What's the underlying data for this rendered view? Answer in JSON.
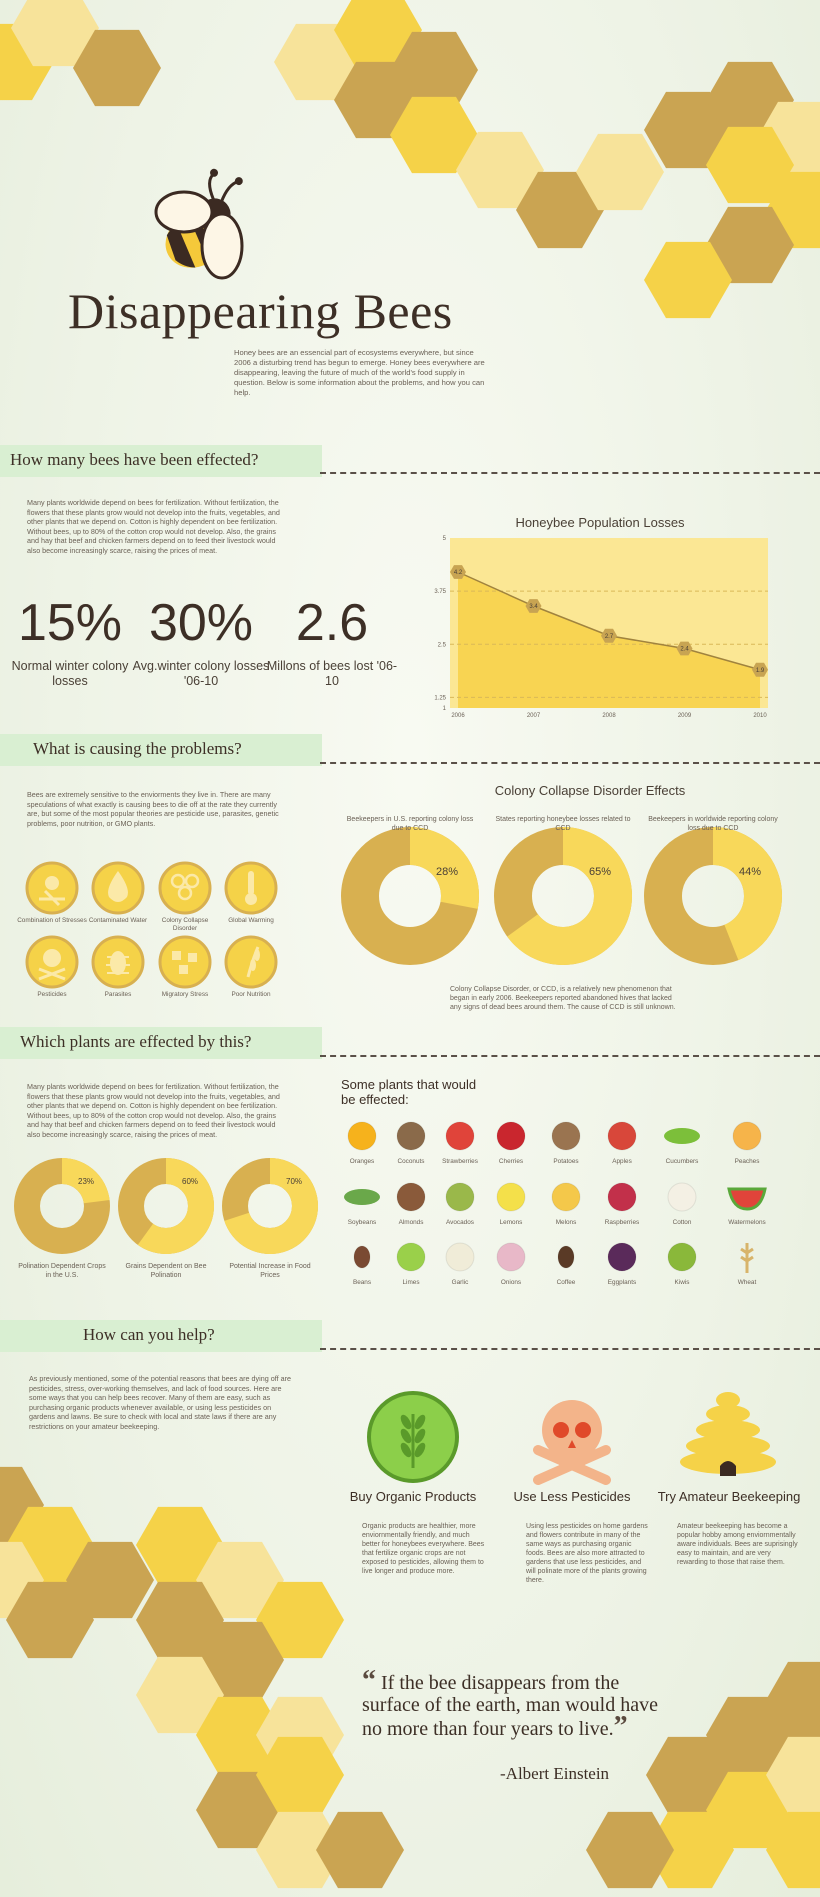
{
  "header": {
    "title": "Disappearing Bees",
    "intro": "Honey bees are an essencial part of ecosystems everywhere, but since 2006 a disturbing trend has begun to emerge. Honey bees everywhere are disappearing, leaving the future of much of the world's food supply in question. Below is some information about the problems, and how you can help."
  },
  "section1": {
    "title": "How many bees have been effected?",
    "body": "Many plants worldwide depend on bees for fertilization. Without fertilization, the flowers that these plants grow would not develop into the fruits, vegetables, and other plants that we depend on. Cotton is highly dependent on bee fertilization. Without bees, up to 80% of the cotton crop would not develop. Also, the grains and hay that beef and chicken farmers depend on to feed their livestock would also become increasingly scarce, raising the prices of meat.",
    "stats": [
      {
        "value": "15%",
        "label": "Normal winter colony losses"
      },
      {
        "value": "30%",
        "label": "Avg.winter colony losses '06-10"
      },
      {
        "value": "2.6",
        "label": "Millons of bees lost '06-10"
      }
    ]
  },
  "chart_data": {
    "type": "line",
    "title": "Honeybee Population Losses",
    "x": [
      "2006",
      "2007",
      "2008",
      "2009",
      "2010"
    ],
    "series": [
      {
        "values": [
          4.2,
          3.4,
          2.7,
          2.4,
          1.9
        ]
      }
    ],
    "point_labels": [
      "4.2",
      "3.4",
      "2.7",
      "2.4",
      "1.9"
    ],
    "yticks": [
      "1",
      "1.25",
      "2.5",
      "3.75",
      "5"
    ],
    "ylim": [
      1,
      5
    ],
    "grid": true
  },
  "section2": {
    "title": "What is causing the problems?",
    "body": "Bees are extremely sensitive to the enviorments they live in. There are many speculations of what exactly is causing bees to die off at the rate they currently are, but some of the most popular theories are pesticide use, parasites, genetic problems, poor nutrition, or GMO plants.",
    "causes": [
      {
        "label": "Combination of Stresses",
        "icon": "stress-icon"
      },
      {
        "label": "Contaminated Water",
        "icon": "water-drop-icon"
      },
      {
        "label": "Colony Collapse Disorder",
        "icon": "honeycomb-icon"
      },
      {
        "label": "Global Warming",
        "icon": "thermometer-icon"
      },
      {
        "label": "Pesticides",
        "icon": "skull-icon"
      },
      {
        "label": "Parasites",
        "icon": "bug-icon"
      },
      {
        "label": "Migratory Stress",
        "icon": "migration-icon"
      },
      {
        "label": "Poor Nutrition",
        "icon": "wheat-icon"
      }
    ],
    "ccd": {
      "title": "Colony Collapse Disorder Effects",
      "donuts": [
        {
          "caption": "Beekeepers in U.S. reporting colony loss due to CCD",
          "percent": 28,
          "label": "28%"
        },
        {
          "caption": "States reporting honeybee losses related to CCD",
          "percent": 65,
          "label": "65%"
        },
        {
          "caption": "Beekeepers in worldwide reporting colony loss due to CCD",
          "percent": 44,
          "label": "44%"
        }
      ],
      "note": "Colony Collapse Disorder, or CCD, is a relatively new phenomenon that began in early 2006. Beekeepers reported abandoned hives that lacked any signs of dead bees around them. The cause of CCD is still unknown."
    }
  },
  "section3": {
    "title": "Which plants are effected by this?",
    "body": "Many plants worldwide depend on bees for fertilization. Without fertilization, the flowers that these plants grow would not develop into the fruits, vegetables, and other plants that we depend on. Cotton is highly dependent on bee fertilization. Without bees, up to 80% of the cotton crop would not develop. Also, the grains and hay that beef and chicken farmers depend on to feed their livestock would also become increasingly scarce, raising the prices of meat.",
    "donuts": [
      {
        "caption": "Polination Dependent Crops in the U.S.",
        "percent": 23,
        "label": "23%"
      },
      {
        "caption": "Grains Dependent on Bee Polination",
        "percent": 60,
        "label": "60%"
      },
      {
        "caption": "Potential Increase in Food Prices",
        "percent": 70,
        "label": "70%"
      }
    ],
    "plants_title": "Some plants that would be effected:",
    "plants": [
      {
        "label": "Oranges",
        "color": "#f6b21c"
      },
      {
        "label": "Coconuts",
        "color": "#8a6a4a"
      },
      {
        "label": "Strawberries",
        "color": "#e0443a"
      },
      {
        "label": "Cherries",
        "color": "#c9262e"
      },
      {
        "label": "Potatoes",
        "color": "#9a7450"
      },
      {
        "label": "Apples",
        "color": "#d8473a"
      },
      {
        "label": "Cucumbers",
        "color": "#7cbf3a"
      },
      {
        "label": "Peaches",
        "color": "#f6b44a"
      },
      {
        "label": "Soybeans",
        "color": "#6aa84a"
      },
      {
        "label": "Almonds",
        "color": "#8a5a3a"
      },
      {
        "label": "Avocados",
        "color": "#9ab84a"
      },
      {
        "label": "Lemons",
        "color": "#f4e04a"
      },
      {
        "label": "Melons",
        "color": "#f4c84a"
      },
      {
        "label": "Raspberries",
        "color": "#c2304a"
      },
      {
        "label": "Cotton",
        "color": "#f4f0e4"
      },
      {
        "label": "Watermelons",
        "color": "#e0443a"
      },
      {
        "label": "Beans",
        "color": "#7a4a32"
      },
      {
        "label": "Limes",
        "color": "#9ad04a"
      },
      {
        "label": "Garlic",
        "color": "#f0ecd8"
      },
      {
        "label": "Onions",
        "color": "#e8b8c8"
      },
      {
        "label": "Coffee",
        "color": "#5a3a26"
      },
      {
        "label": "Eggplants",
        "color": "#5a2a5a"
      },
      {
        "label": "Kiwis",
        "color": "#8ab83a"
      },
      {
        "label": "Wheat",
        "color": "#d8b46a"
      }
    ]
  },
  "section4": {
    "title": "How can you help?",
    "body": "As previously mentioned, some of the potential reasons that bees are dying off are pesticides, stress, over-working themselves, and lack of food sources. Here are some ways that you can help bees recover. Many of them are easy, such as purchasing organic products whenever available, or using less pesticides on gardens and lawns. Be sure to check with local and state laws if there are any restrictions on your amateur beekeeping.",
    "tips": [
      {
        "title": "Buy Organic Products",
        "body": "Organic products are healthier, more enviornmentally friendly, and much better for honeybees everywhere. Bees that fertilize organic crops are not exposed to pesticides, allowing them to live longer and produce more.",
        "icon": "organic-wheat-icon"
      },
      {
        "title": "Use Less Pesticides",
        "body": "Using less pesticides on home gardens and flowers contribute in many of the same ways as purchasing organic foods. Bees are also more attracted to gardens that use less pesticides, and will polinate more of the plants growing there.",
        "icon": "skull-crossbones-icon"
      },
      {
        "title": "Try Amateur Beekeeping",
        "body": "Amateur beekeeping has become a popular hobby among enviornmentally aware individuals. Bees are suprisingly easy to maintain, and are very rewarding to those that raise them.",
        "icon": "beehive-icon"
      }
    ]
  },
  "quote": {
    "text": "If the bee disappears from the surface of the earth, man would have no more than four years to live.",
    "open_mark": "“",
    "close_mark": "”",
    "author": "-Albert Einstein"
  },
  "colors": {
    "hex_dark": "#caa452",
    "hex_mid": "#f5d248",
    "hex_light": "#f7e39a",
    "section_bar": "#d9efd2",
    "donut_dark": "#d8b050",
    "donut_light": "#f8d85a"
  }
}
